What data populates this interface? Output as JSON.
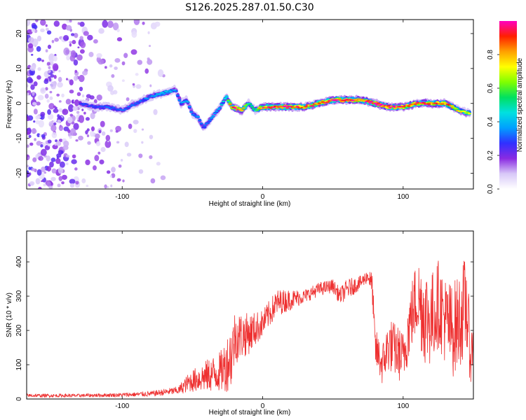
{
  "title": "S126.2025.287.01.50.C30",
  "chart_data": [
    {
      "type": "heatmap",
      "xlabel": "Height of straight line (km)",
      "ylabel": "Frequency (Hz)",
      "xlim": [
        -168,
        150
      ],
      "ylim": [
        -24.5,
        24
      ],
      "xticks": [
        -100,
        0,
        100
      ],
      "xtick_labels": [
        "-100",
        "0",
        "100"
      ],
      "yticks": [
        -20,
        -10,
        0,
        10,
        20
      ],
      "ytick_labels": [
        "-20",
        "-10",
        "0",
        "10",
        "20"
      ],
      "ridge": {
        "x": [
          -130,
          -120,
          -110,
          -100,
          -90,
          -80,
          -70,
          -62,
          -58,
          -54,
          -50,
          -46,
          -42,
          -38,
          -34,
          -30,
          -26,
          -22,
          -15,
          -10,
          -5,
          0,
          10,
          20,
          30,
          40,
          50,
          60,
          70,
          80,
          90,
          100,
          110,
          120,
          130,
          140,
          148
        ],
        "freq": [
          0,
          -1,
          -1,
          -2,
          0,
          2,
          3,
          4,
          0,
          1,
          -3,
          -4,
          -7,
          -5,
          -3,
          -1,
          2,
          -1,
          -2,
          0,
          -2,
          -1,
          -1,
          -1,
          -1,
          0,
          1,
          1,
          1,
          0,
          -1,
          -1,
          0,
          0,
          0,
          -2,
          -3
        ],
        "amplitude": [
          0.25,
          0.3,
          0.3,
          0.3,
          0.3,
          0.35,
          0.4,
          0.35,
          0.35,
          0.4,
          0.35,
          0.35,
          0.3,
          0.35,
          0.35,
          0.4,
          0.45,
          0.9,
          0.9,
          0.5,
          0.5,
          0.9,
          0.95,
          0.9,
          0.85,
          0.9,
          0.95,
          0.95,
          0.9,
          0.95,
          0.9,
          0.9,
          0.9,
          0.9,
          0.85,
          0.7,
          0.65
        ]
      },
      "colorbar": {
        "label": "Normalized spectral amplitude",
        "range": [
          0,
          1
        ],
        "ticks": [
          0.0,
          0.2,
          0.4,
          0.6,
          0.8
        ],
        "tick_labels": [
          "0.0",
          "0.2",
          "0.4",
          "0.6",
          "0.8"
        ],
        "colormap": [
          "#ffffff",
          "#d8c8f8",
          "#8a2be2",
          "#3030ff",
          "#00a0ff",
          "#00e0e0",
          "#00e060",
          "#80ff00",
          "#ffff00",
          "#ffa000",
          "#ff2000",
          "#ff00c0"
        ]
      },
      "noise_region_x": [
        -168,
        -70
      ]
    },
    {
      "type": "line",
      "xlabel": "Height of straight line (km)",
      "ylabel": "SNR (10 * v/v)",
      "xlim": [
        -168,
        150
      ],
      "ylim": [
        0,
        490
      ],
      "xticks": [
        -100,
        0,
        100
      ],
      "xtick_labels": [
        "-100",
        "0",
        "100"
      ],
      "yticks": [
        0,
        100,
        200,
        300,
        400
      ],
      "ytick_labels": [
        "0",
        "100",
        "200",
        "300",
        "400"
      ],
      "line_color": "#ee3030",
      "envelope": {
        "x": [
          -168,
          -130,
          -100,
          -80,
          -60,
          -52,
          -45,
          -38,
          -30,
          -26,
          -22,
          -20,
          -10,
          0,
          10,
          20,
          30,
          40,
          50,
          55,
          60,
          70,
          75,
          78,
          80,
          85,
          90,
          95,
          100,
          105,
          110,
          115,
          120,
          125,
          130,
          135,
          140,
          145,
          148,
          150
        ],
        "mean": [
          10,
          10,
          12,
          15,
          25,
          50,
          60,
          70,
          80,
          100,
          130,
          180,
          190,
          220,
          280,
          290,
          300,
          320,
          330,
          300,
          320,
          340,
          360,
          330,
          150,
          100,
          160,
          140,
          120,
          230,
          300,
          250,
          230,
          280,
          230,
          200,
          230,
          280,
          120,
          170
        ],
        "amp": [
          5,
          5,
          6,
          8,
          12,
          30,
          40,
          50,
          60,
          80,
          100,
          80,
          60,
          40,
          40,
          30,
          20,
          20,
          20,
          25,
          30,
          20,
          20,
          40,
          60,
          60,
          80,
          80,
          80,
          100,
          120,
          150,
          140,
          130,
          130,
          140,
          140,
          150,
          80,
          60
        ]
      }
    }
  ]
}
